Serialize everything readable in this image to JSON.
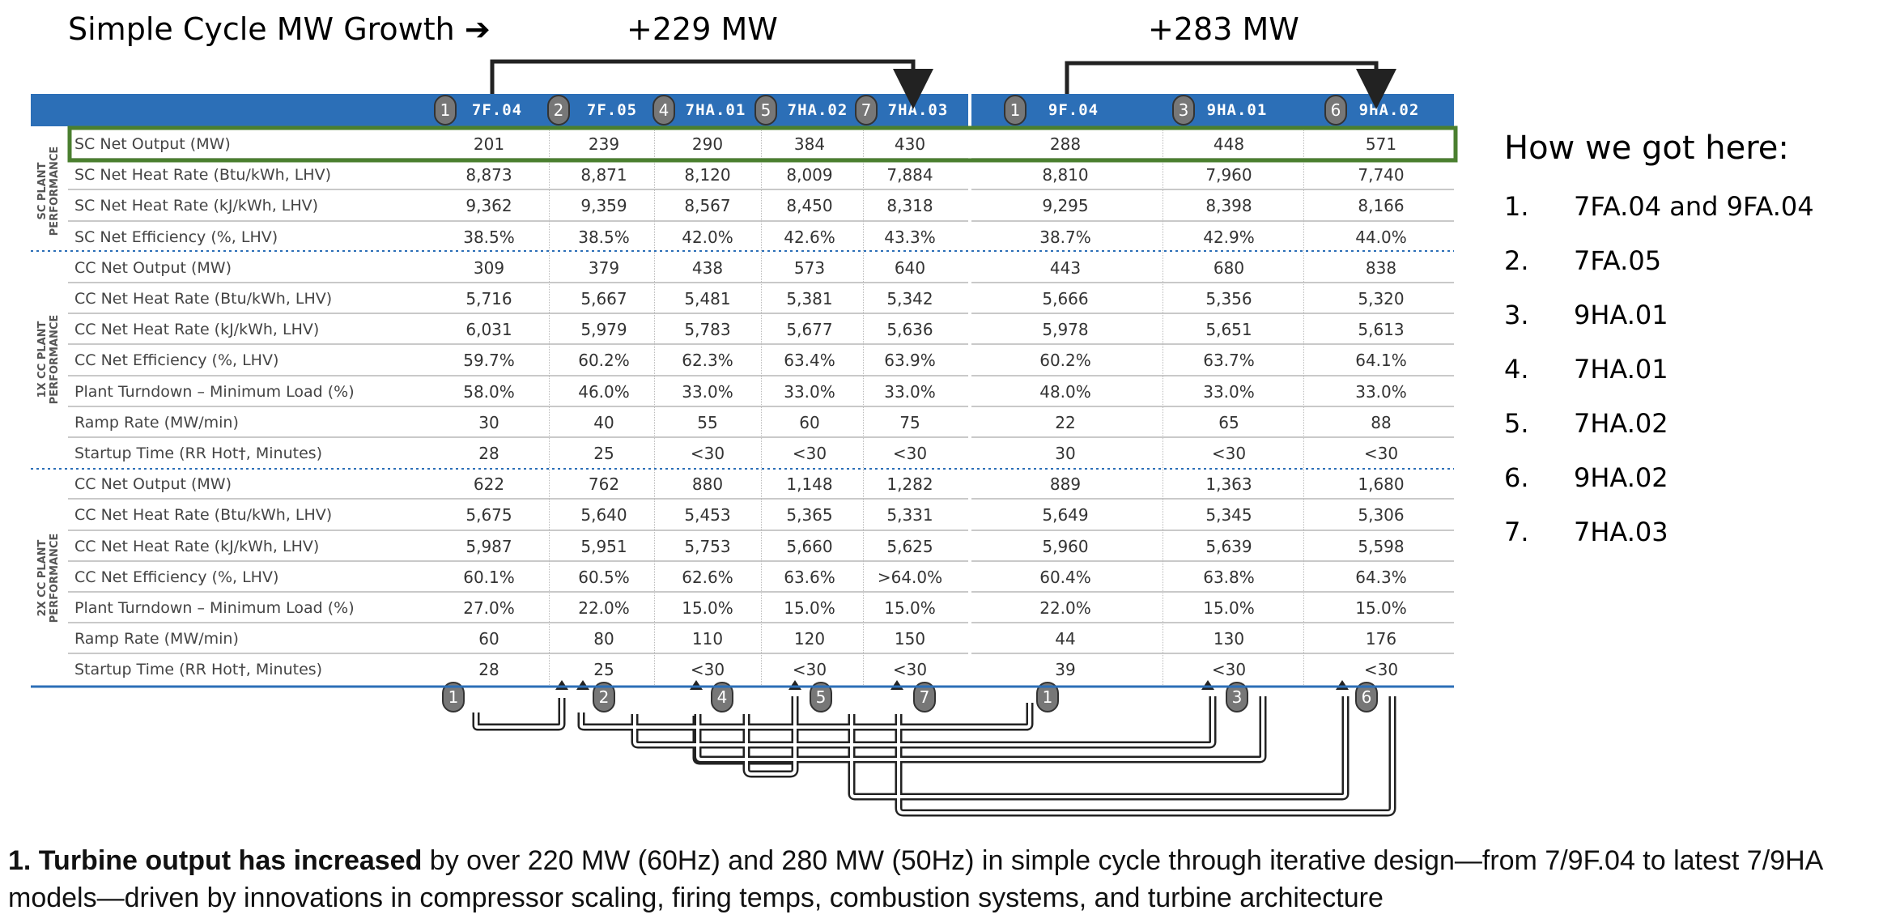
{
  "title": "Simple Cycle MW Growth ➔",
  "delta_60hz": "+229 MW",
  "delta_50hz": "+283 MW",
  "columns": [
    "7F.04",
    "7F.05",
    "7HA.01",
    "7HA.02",
    "7HA.03",
    "9F.04",
    "9HA.01",
    "9HA.02"
  ],
  "order_badges": [
    "1",
    "2",
    "4",
    "5",
    "7",
    "1",
    "3",
    "6"
  ],
  "sections": [
    {
      "label_line1": "SC PLANT",
      "label_line2": "PERFORMANCE"
    },
    {
      "label_line1": "1X CC PLANT",
      "label_line2": "PERFORMANCE"
    },
    {
      "label_line1": "2X CC PLANT",
      "label_line2": "PERFORMANCE"
    }
  ],
  "rows": [
    {
      "label": "SC Net Output (MW)",
      "values": [
        "201",
        "239",
        "290",
        "384",
        "430",
        "288",
        "448",
        "571"
      ]
    },
    {
      "label": "SC Net Heat Rate (Btu/kWh, LHV)",
      "values": [
        "8,873",
        "8,871",
        "8,120",
        "8,009",
        "7,884",
        "8,810",
        "7,960",
        "7,740"
      ]
    },
    {
      "label": "SC Net Heat Rate (kJ/kWh, LHV)",
      "values": [
        "9,362",
        "9,359",
        "8,567",
        "8,450",
        "8,318",
        "9,295",
        "8,398",
        "8,166"
      ]
    },
    {
      "label": "SC Net Efficiency (%, LHV)",
      "values": [
        "38.5%",
        "38.5%",
        "42.0%",
        "42.6%",
        "43.3%",
        "38.7%",
        "42.9%",
        "44.0%"
      ]
    },
    {
      "label": "CC Net Output (MW)",
      "values": [
        "309",
        "379",
        "438",
        "573",
        "640",
        "443",
        "680",
        "838"
      ]
    },
    {
      "label": "CC Net Heat Rate (Btu/kWh, LHV)",
      "values": [
        "5,716",
        "5,667",
        "5,481",
        "5,381",
        "5,342",
        "5,666",
        "5,356",
        "5,320"
      ]
    },
    {
      "label": "CC Net Heat Rate (kJ/kWh, LHV)",
      "values": [
        "6,031",
        "5,979",
        "5,783",
        "5,677",
        "5,636",
        "5,978",
        "5,651",
        "5,613"
      ]
    },
    {
      "label": "CC Net Efficiency (%, LHV)",
      "values": [
        "59.7%",
        "60.2%",
        "62.3%",
        "63.4%",
        "63.9%",
        "60.2%",
        "63.7%",
        "64.1%"
      ]
    },
    {
      "label": "Plant Turndown – Minimum Load (%)",
      "values": [
        "58.0%",
        "46.0%",
        "33.0%",
        "33.0%",
        "33.0%",
        "48.0%",
        "33.0%",
        "33.0%"
      ]
    },
    {
      "label": "Ramp Rate (MW/min)",
      "values": [
        "30",
        "40",
        "55",
        "60",
        "75",
        "22",
        "65",
        "88"
      ]
    },
    {
      "label": "Startup Time (RR Hot†, Minutes)",
      "values": [
        "28",
        "25",
        "<30",
        "<30",
        "<30",
        "30",
        "<30",
        "<30"
      ]
    },
    {
      "label": "CC Net Output (MW)",
      "values": [
        "622",
        "762",
        "880",
        "1,148",
        "1,282",
        "889",
        "1,363",
        "1,680"
      ]
    },
    {
      "label": "CC Net Heat Rate (Btu/kWh, LHV)",
      "values": [
        "5,675",
        "5,640",
        "5,453",
        "5,365",
        "5,331",
        "5,649",
        "5,345",
        "5,306"
      ]
    },
    {
      "label": "CC Net Heat Rate (kJ/kWh, LHV)",
      "values": [
        "5,987",
        "5,951",
        "5,753",
        "5,660",
        "5,625",
        "5,960",
        "5,639",
        "5,598"
      ]
    },
    {
      "label": "CC Net Efficiency (%, LHV)",
      "values": [
        "60.1%",
        "60.5%",
        "62.6%",
        "63.6%",
        ">64.0%",
        "60.4%",
        "63.8%",
        "64.3%"
      ]
    },
    {
      "label": "Plant Turndown – Minimum Load (%)",
      "values": [
        "27.0%",
        "22.0%",
        "15.0%",
        "15.0%",
        "15.0%",
        "22.0%",
        "15.0%",
        "15.0%"
      ]
    },
    {
      "label": "Ramp Rate (MW/min)",
      "values": [
        "60",
        "80",
        "110",
        "120",
        "150",
        "44",
        "130",
        "176"
      ]
    },
    {
      "label": "Startup Time (RR Hot†, Minutes)",
      "values": [
        "28",
        "25",
        "<30",
        "<30",
        "<30",
        "39",
        "<30",
        "<30"
      ]
    }
  ],
  "how_title": "How we got here:",
  "how_list": [
    {
      "num": "1.",
      "text": "7FA.04 and 9FA.04"
    },
    {
      "num": "2.",
      "text": "7FA.05"
    },
    {
      "num": "3.",
      "text": "9HA.01"
    },
    {
      "num": "4.",
      "text": "7HA.01"
    },
    {
      "num": "5.",
      "text": "7HA.02"
    },
    {
      "num": "6.",
      "text": "9HA.02"
    },
    {
      "num": "7.",
      "text": "7HA.03"
    }
  ],
  "caption_bold": "1. Turbine output has increased",
  "caption_rest": " by over 220 MW (60Hz) and 280 MW (50Hz) in simple cycle through iterative design—from 7/9F.04 to latest 7/9HA models—driven by innovations in compressor scaling, firing temps, combustion systems, and turbine architecture",
  "colors": {
    "header_blue": "#2c6fb7",
    "highlight_green": "#4a7f2f",
    "badge_gray": "#777777"
  }
}
